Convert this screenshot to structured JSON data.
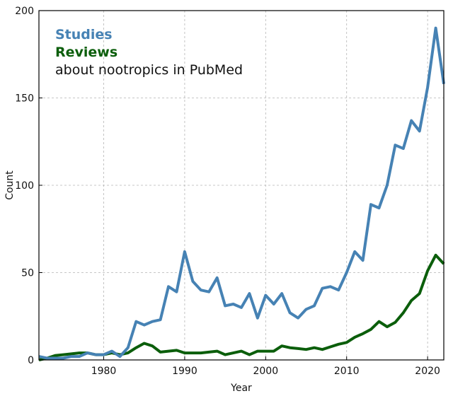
{
  "chart_data": {
    "type": "line",
    "title": "",
    "xlabel": "Year",
    "ylabel": "Count",
    "xlim": [
      1972,
      2022
    ],
    "ylim": [
      0,
      200
    ],
    "x_ticks": [
      1980,
      1990,
      2000,
      2010,
      2020
    ],
    "y_ticks": [
      0,
      50,
      100,
      150,
      200
    ],
    "grid": true,
    "legend_position": "top-left",
    "legend": {
      "studies_label": "Studies",
      "reviews_label": "Reviews",
      "caption": "about nootropics in PubMed"
    },
    "series": [
      {
        "name": "Studies",
        "color": "#4682b4",
        "x": [
          1972,
          1973,
          1974,
          1975,
          1976,
          1977,
          1978,
          1979,
          1980,
          1981,
          1982,
          1983,
          1984,
          1985,
          1986,
          1987,
          1988,
          1989,
          1990,
          1991,
          1992,
          1993,
          1994,
          1995,
          1996,
          1997,
          1998,
          1999,
          2000,
          2001,
          2002,
          2003,
          2004,
          2005,
          2006,
          2007,
          2008,
          2009,
          2010,
          2011,
          2012,
          2013,
          2014,
          2015,
          2016,
          2017,
          2018,
          2019,
          2020,
          2021,
          2022
        ],
        "values": [
          2,
          1,
          1,
          1,
          2,
          2,
          4,
          3,
          3,
          5,
          2,
          7,
          22,
          20,
          22,
          23,
          42,
          39,
          62,
          45,
          40,
          39,
          47,
          31,
          32,
          30,
          38,
          24,
          37,
          32,
          38,
          27,
          24,
          29,
          31,
          41,
          42,
          40,
          50,
          62,
          57,
          89,
          87,
          100,
          123,
          121,
          137,
          131,
          156,
          190,
          158
        ]
      },
      {
        "name": "Reviews",
        "color": "#0b5e0b",
        "x": [
          1972,
          1973,
          1974,
          1975,
          1976,
          1977,
          1978,
          1979,
          1980,
          1981,
          1982,
          1983,
          1984,
          1985,
          1986,
          1987,
          1988,
          1989,
          1990,
          1991,
          1992,
          1993,
          1994,
          1995,
          1996,
          1997,
          1998,
          1999,
          2000,
          2001,
          2002,
          2003,
          2004,
          2005,
          2006,
          2007,
          2008,
          2009,
          2010,
          2011,
          2012,
          2013,
          2014,
          2015,
          2016,
          2017,
          2018,
          2019,
          2020,
          2021,
          2022
        ],
        "values": [
          0,
          1,
          2.5,
          3,
          3.5,
          4,
          4,
          3,
          3,
          4,
          3,
          4,
          7,
          9.5,
          8,
          4.5,
          5,
          5.5,
          4,
          4,
          4,
          4.5,
          5,
          3,
          4,
          5,
          3,
          5,
          5,
          5,
          8,
          7,
          6.5,
          6,
          7,
          6,
          7.5,
          9,
          10,
          13,
          15,
          17.5,
          22,
          19,
          21.5,
          27,
          34,
          38,
          51,
          60,
          55
        ]
      }
    ]
  }
}
